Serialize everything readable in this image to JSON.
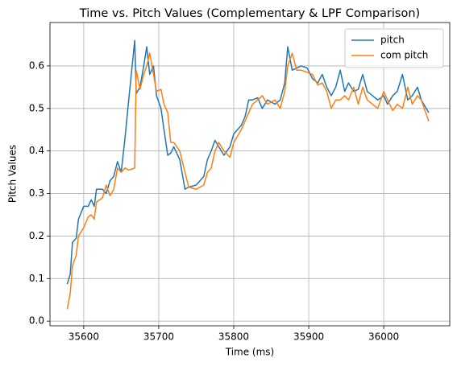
{
  "chart_data": {
    "type": "line",
    "title": "Time vs. Pitch Values (Complementary & LPF Comparison)",
    "x_label": "Time (ms)",
    "y_label": "Pitch Values",
    "x": [
      35578,
      35582,
      35585,
      35590,
      35593,
      35600,
      35606,
      35610,
      35614,
      35617,
      35625,
      35630,
      35635,
      35640,
      35645,
      35650,
      35655,
      35660,
      35668,
      35670,
      35675,
      35680,
      35684,
      35688,
      35693,
      35697,
      35703,
      35707,
      35712,
      35716,
      35720,
      35728,
      35735,
      35740,
      35750,
      35760,
      35765,
      35770,
      35775,
      35780,
      35787,
      35795,
      35800,
      35810,
      35815,
      35820,
      35825,
      35832,
      35838,
      35845,
      35855,
      35862,
      35868,
      35872,
      35878,
      35884,
      35890,
      35898,
      35905,
      35912,
      35918,
      35924,
      35930,
      35936,
      35942,
      35948,
      35953,
      35960,
      35966,
      35972,
      35978,
      35985,
      35992,
      36000,
      36005,
      36012,
      36018,
      36025,
      36032,
      36038,
      36045,
      36050,
      36060
    ],
    "series": [
      {
        "name": "pitch",
        "color": "#1f77b4",
        "values": [
          0.087,
          0.11,
          0.185,
          0.195,
          0.24,
          0.27,
          0.27,
          0.285,
          0.27,
          0.31,
          0.31,
          0.3,
          0.33,
          0.34,
          0.375,
          0.35,
          0.43,
          0.52,
          0.66,
          0.535,
          0.55,
          0.6,
          0.645,
          0.58,
          0.6,
          0.53,
          0.5,
          0.45,
          0.39,
          0.395,
          0.41,
          0.38,
          0.31,
          0.315,
          0.32,
          0.34,
          0.38,
          0.4,
          0.425,
          0.41,
          0.39,
          0.41,
          0.44,
          0.46,
          0.48,
          0.52,
          0.52,
          0.525,
          0.5,
          0.52,
          0.51,
          0.52,
          0.56,
          0.645,
          0.59,
          0.595,
          0.6,
          0.595,
          0.57,
          0.56,
          0.58,
          0.55,
          0.53,
          0.55,
          0.59,
          0.54,
          0.56,
          0.54,
          0.545,
          0.58,
          0.54,
          0.53,
          0.52,
          0.53,
          0.51,
          0.53,
          0.54,
          0.58,
          0.52,
          0.53,
          0.55,
          0.52,
          0.49
        ]
      },
      {
        "name": "com pitch",
        "color": "#ff7f0e",
        "values": [
          0.028,
          0.065,
          0.13,
          0.155,
          0.2,
          0.22,
          0.245,
          0.25,
          0.24,
          0.28,
          0.29,
          0.32,
          0.295,
          0.31,
          0.36,
          0.35,
          0.36,
          0.355,
          0.36,
          0.59,
          0.545,
          0.58,
          0.6,
          0.63,
          0.58,
          0.54,
          0.545,
          0.51,
          0.49,
          0.42,
          0.42,
          0.4,
          0.35,
          0.315,
          0.31,
          0.32,
          0.35,
          0.36,
          0.4,
          0.42,
          0.4,
          0.385,
          0.42,
          0.45,
          0.47,
          0.49,
          0.51,
          0.52,
          0.53,
          0.51,
          0.52,
          0.5,
          0.54,
          0.6,
          0.63,
          0.59,
          0.59,
          0.585,
          0.58,
          0.555,
          0.56,
          0.54,
          0.5,
          0.52,
          0.52,
          0.53,
          0.52,
          0.55,
          0.51,
          0.55,
          0.52,
          0.51,
          0.5,
          0.54,
          0.52,
          0.495,
          0.51,
          0.5,
          0.55,
          0.51,
          0.53,
          0.52,
          0.47
        ]
      }
    ],
    "xlim": [
      35555,
      36088
    ],
    "xticks": [
      35600,
      35700,
      35800,
      35900,
      36000
    ],
    "ylim": [
      -0.011,
      0.702
    ],
    "yticks": [
      {
        "value": 0,
        "label": "0.0"
      },
      0.1,
      0.2,
      0.3,
      0.4,
      0.5,
      0.6
    ],
    "grid": true,
    "legend": "upper right"
  }
}
